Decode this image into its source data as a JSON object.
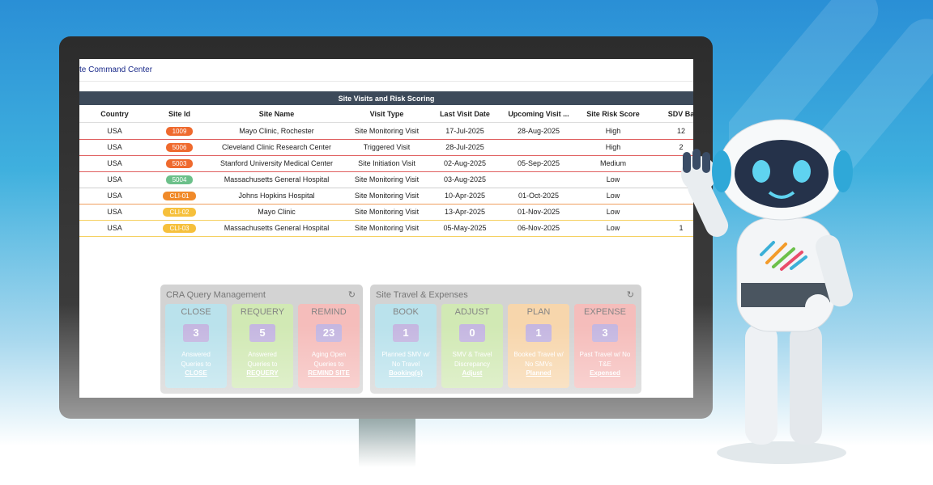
{
  "header": {
    "title": "te Command Center"
  },
  "table": {
    "title": "Site Visits and Risk Scoring",
    "columns": [
      "Country",
      "Site Id",
      "Site Name",
      "Visit Type",
      "Last Visit Date",
      "Upcoming Visit ...",
      "Site Risk Score",
      "SDV Ba"
    ],
    "rows": [
      [
        "USA",
        "1009",
        "Mayo Clinic, Rochester",
        "Site Monitoring Visit",
        "17-Jul-2025",
        "28-Aug-2025",
        "High",
        "12"
      ],
      [
        "USA",
        "5006",
        "Cleveland Clinic Research Center",
        "Triggered Visit",
        "28-Jul-2025",
        null,
        "High",
        "2"
      ],
      [
        "USA",
        "5003",
        "Stanford University Medical Center",
        "Site Initiation Visit",
        "02-Aug-2025",
        "05-Sep-2025",
        "Medium",
        null
      ],
      [
        "USA",
        "5004",
        "Massachusetts General Hospital",
        "Site Monitoring Visit",
        "03-Aug-2025",
        null,
        "Low",
        null
      ],
      [
        "USA",
        "CLI-01",
        "Johns Hopkins Hospital",
        "Site Monitoring Visit",
        "10-Apr-2025",
        "01-Oct-2025",
        "Low",
        null
      ],
      [
        "USA",
        "CLI-02",
        "Mayo Clinic",
        "Site Monitoring Visit",
        "13-Apr-2025",
        "01-Nov-2025",
        "Low",
        null
      ],
      [
        "USA",
        "CLI-03",
        "Massachusetts General Hospital",
        "Site Monitoring Visit",
        "05-May-2025",
        "06-Nov-2025",
        "Low",
        "1"
      ]
    ],
    "badge_colors": [
      "#ef6a2e",
      "#ef6a2e",
      "#ef6a2e",
      "#6cc08a",
      "#f08a2a",
      "#f6c03c",
      "#f6c03c"
    ],
    "row_colors": [
      "#e06060",
      "#e06060",
      "#e06060",
      "#d0d0d0",
      "#f0a060",
      "#f5d060",
      "#f5d060"
    ]
  },
  "panels": [
    {
      "title": "CRA Query Management",
      "cards": [
        {
          "title": "CLOSE",
          "count": 3,
          "text": "Answered Queries to",
          "link": "CLOSE",
          "color": "#a9dce8"
        },
        {
          "title": "REQUERY",
          "count": 5,
          "text": "Answered Queries to",
          "link": "REQUERY",
          "color": "#c6e4a2"
        },
        {
          "title": "REMIND",
          "count": 23,
          "text": "Aging Open Queries to",
          "link": "REMIND SITE",
          "color": "#f3adab"
        }
      ]
    },
    {
      "title": "Site Travel & Expenses",
      "cards": [
        {
          "title": "BOOK",
          "count": 1,
          "text": "Planned SMV w/ No Travel",
          "link": "Booking(s)",
          "color": "#a9dce8"
        },
        {
          "title": "ADJUST",
          "count": 0,
          "text": "SMV & Travel Discrepancy",
          "link": "Adjust",
          "color": "#c6e4a2"
        },
        {
          "title": "PLAN",
          "count": 1,
          "text": "Booked Travel w/ No SMVs",
          "link": "Planned",
          "color": "#f6cc98"
        },
        {
          "title": "EXPENSE",
          "count": 3,
          "text": "Past Travel w/ No T&E",
          "link": "Expensed",
          "color": "#f3adab"
        }
      ]
    }
  ]
}
